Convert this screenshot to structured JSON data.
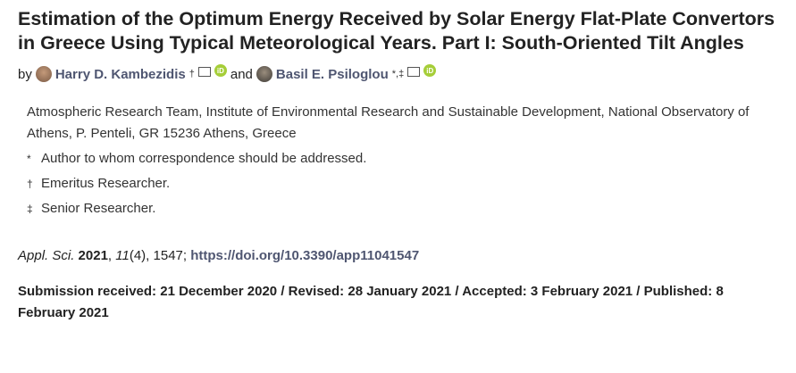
{
  "title": "Estimation of the Optimum Energy Received by Solar Energy Flat-Plate Convertors in Greece Using Typical Meteorological Years. Part I: South-Oriented Tilt Angles",
  "authors": {
    "by": "by",
    "and": "and",
    "list": [
      {
        "name": "Harry D. Kambezidis",
        "marks": "†"
      },
      {
        "name": "Basil E. Psiloglou",
        "marks": "*,‡"
      }
    ]
  },
  "affiliation": "Atmospheric Research Team, Institute of Environmental Research and Sustainable Development, National Observatory of Athens, P. Penteli, GR 15236 Athens, Greece",
  "notes": [
    {
      "mark": "*",
      "text": "Author to whom correspondence should be addressed."
    },
    {
      "mark": "†",
      "text": "Emeritus Researcher."
    },
    {
      "mark": "‡",
      "text": "Senior Researcher."
    }
  ],
  "citation": {
    "journal": "Appl. Sci.",
    "year": "2021",
    "volume": "11",
    "issue": "(4), 1547; ",
    "doi": "https://doi.org/10.3390/app11041547"
  },
  "dates": "Submission received: 21 December 2020 / Revised: 28 January 2021 / Accepted: 3 February 2021 / Published: 8 February 2021",
  "colors": {
    "author": "#4f5671",
    "orcid": "#a6ce39"
  }
}
